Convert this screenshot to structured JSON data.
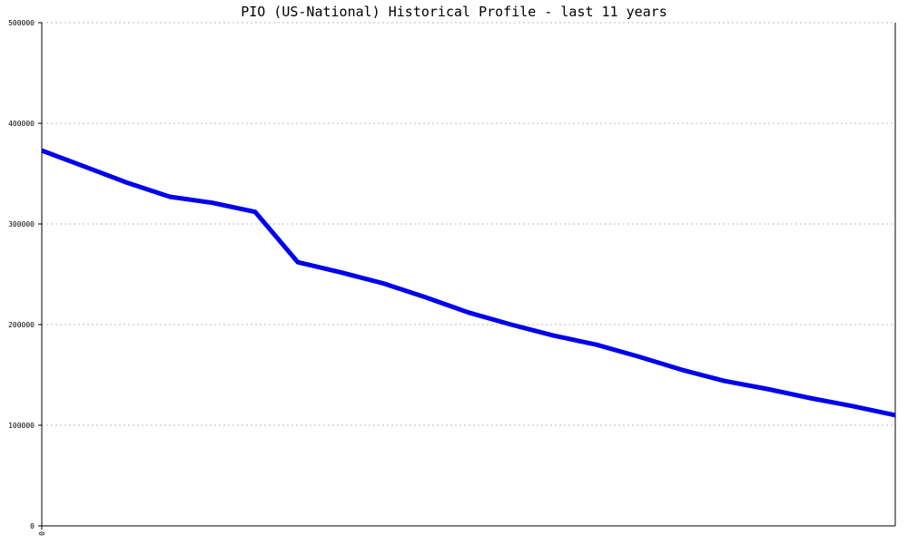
{
  "chart_data": {
    "type": "line",
    "title": "PIO (US-National) Historical Profile - last 11 years",
    "xlabel": "",
    "ylabel": "",
    "ylim": [
      0,
      500000
    ],
    "yticks": [
      0,
      100000,
      200000,
      300000,
      400000,
      500000
    ],
    "ytick_labels": [
      "0",
      "100000",
      "200000",
      "300000",
      "400000",
      "500000"
    ],
    "xtick_labels": [
      "0"
    ],
    "grid": true,
    "line_color": "#0000ee",
    "grid_color": "#bbbbbb",
    "series": [
      {
        "values": [
          373000,
          357000,
          341000,
          327000,
          321000,
          312000,
          262000,
          252000,
          241000,
          227000,
          212000,
          200000,
          189000,
          180000,
          168000,
          155000,
          144000,
          136000,
          127000,
          119000,
          110000
        ]
      }
    ]
  }
}
